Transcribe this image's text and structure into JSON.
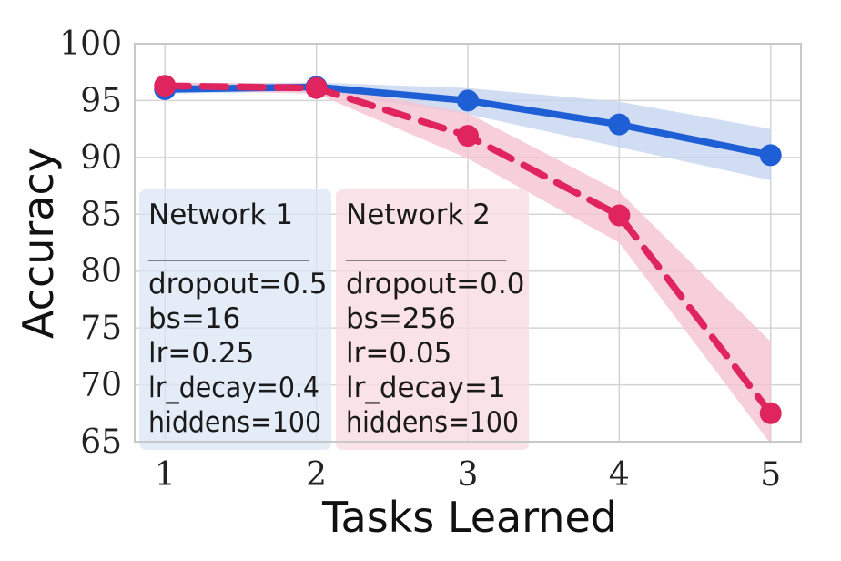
{
  "chart_data": {
    "type": "line",
    "title": "",
    "xlabel": "Tasks Learned",
    "ylabel": "Accuracy",
    "x": [
      1,
      2,
      3,
      4,
      5
    ],
    "xlim": [
      0.8,
      5.2
    ],
    "ylim": [
      65,
      100
    ],
    "xticks": [
      "1",
      "2",
      "3",
      "4",
      "5"
    ],
    "yticks": [
      "65",
      "70",
      "75",
      "80",
      "85",
      "90",
      "95",
      "100"
    ],
    "grid": true,
    "series": [
      {
        "values": [
          96.0,
          96.2,
          95.0,
          92.9,
          90.2
        ],
        "lower": [
          95.6,
          95.8,
          93.8,
          90.9,
          88.0
        ],
        "upper": [
          96.5,
          96.6,
          96.1,
          94.9,
          92.5
        ],
        "color": "#1f5fd6",
        "band_color": "#c5d5f0",
        "style": "solid"
      },
      {
        "values": [
          96.3,
          96.1,
          91.9,
          84.9,
          67.5
        ],
        "lower": [
          95.9,
          95.6,
          89.9,
          82.5,
          64.8
        ],
        "upper": [
          96.6,
          96.5,
          93.9,
          87.0,
          73.8
        ],
        "color": "#e0245e",
        "band_color": "#f4c3d1",
        "style": "dashed"
      }
    ]
  },
  "boxes": [
    {
      "title": "Network 1",
      "separator": "_______________",
      "lines": [
        "dropout=0.5",
        "bs=16",
        "lr=0.25",
        "lr_decay=0.4",
        "hiddens=100"
      ],
      "color": "#dbe5f5"
    },
    {
      "title": "Network 2",
      "separator": "_______________",
      "lines": [
        "dropout=0.0",
        "bs=256",
        "lr=0.05",
        "lr_decay=1",
        "hiddens=100"
      ],
      "color": "#f9dbe4"
    }
  ]
}
